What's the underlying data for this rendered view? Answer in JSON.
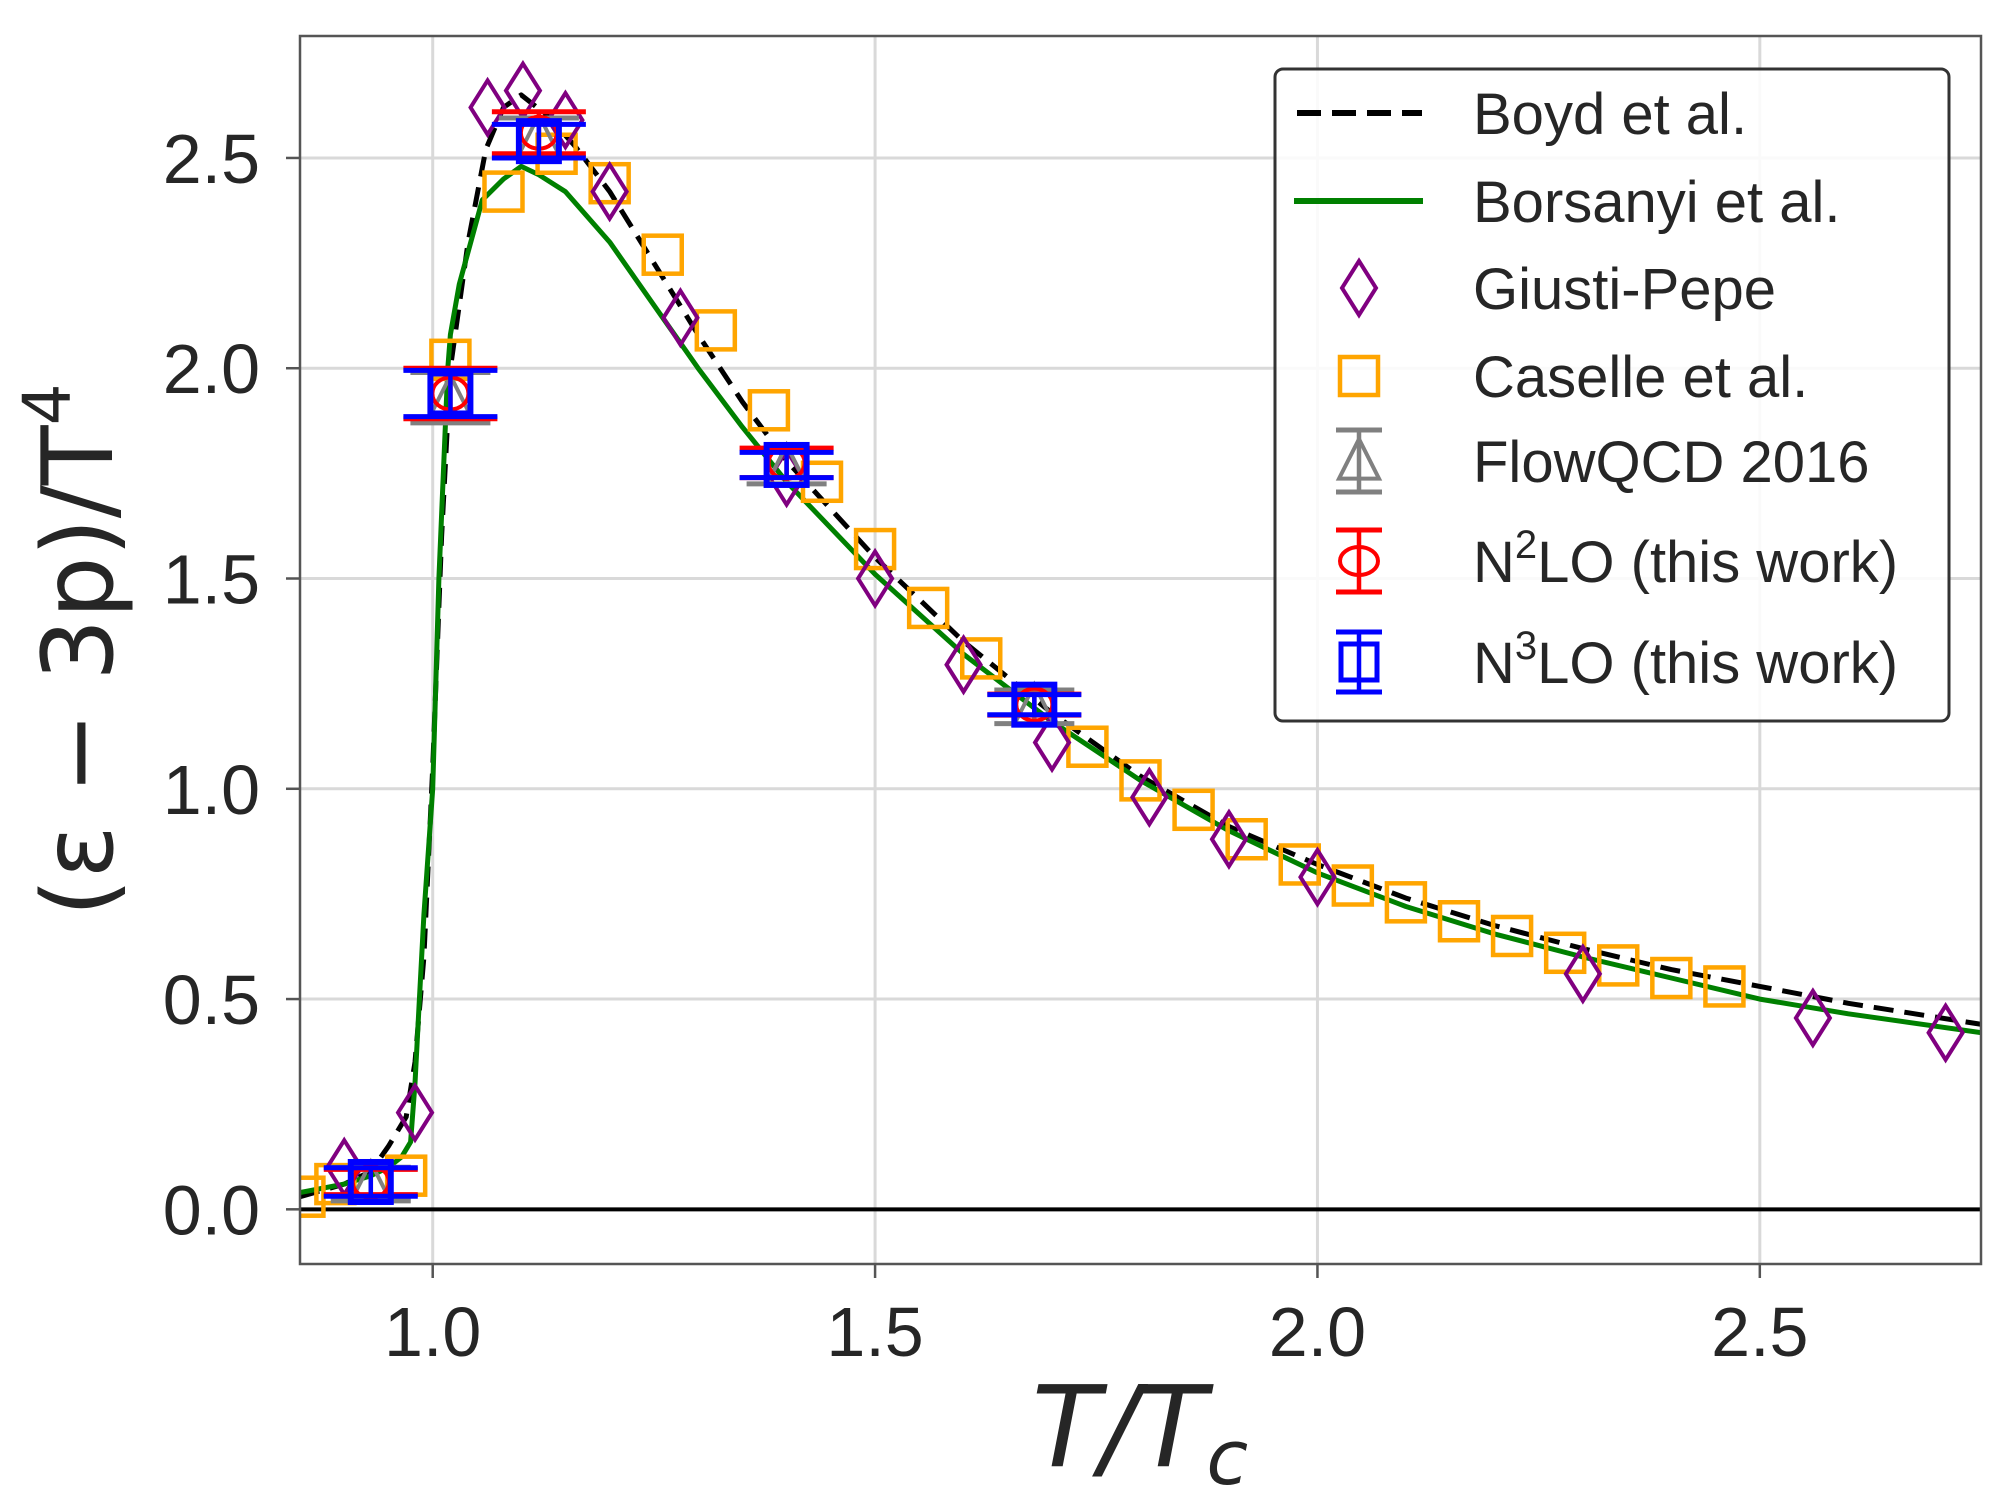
{
  "chart_data": {
    "type": "line",
    "title": "",
    "xlabel": "T/T_c",
    "xlabel_main": "T/T",
    "xlabel_sub": "c",
    "ylabel": "(ε − 3p)/T^4",
    "ylabel_main": "(ε − 3p)/T",
    "ylabel_sup": "4",
    "xlim": [
      0.85,
      2.75
    ],
    "ylim": [
      -0.13,
      2.79
    ],
    "xticks": [
      1.0,
      1.5,
      2.0,
      2.5
    ],
    "xtick_labels": [
      "1.0",
      "1.5",
      "2.0",
      "2.5"
    ],
    "yticks": [
      0.0,
      0.5,
      1.0,
      1.5,
      2.0,
      2.5
    ],
    "ytick_labels": [
      "0.0",
      "0.5",
      "1.0",
      "1.5",
      "2.0",
      "2.5"
    ],
    "grid": true,
    "zero_line": true,
    "legend_position": "top-right",
    "series": [
      {
        "name": "Boyd et al.",
        "style": "dashed-line",
        "color": "#000000",
        "x": [
          0.85,
          0.9,
          0.93,
          0.95,
          0.97,
          0.98,
          0.99,
          1.0,
          1.01,
          1.02,
          1.04,
          1.06,
          1.08,
          1.1,
          1.13,
          1.16,
          1.2,
          1.25,
          1.3,
          1.35,
          1.4,
          1.5,
          1.6,
          1.7,
          1.8,
          1.9,
          2.0,
          2.1,
          2.2,
          2.3,
          2.4,
          2.5,
          2.6,
          2.75
        ],
        "y": [
          0.03,
          0.06,
          0.09,
          0.15,
          0.22,
          0.35,
          0.6,
          1.05,
          1.6,
          2.0,
          2.3,
          2.52,
          2.62,
          2.65,
          2.6,
          2.53,
          2.42,
          2.25,
          2.08,
          1.92,
          1.78,
          1.55,
          1.35,
          1.18,
          1.03,
          0.91,
          0.82,
          0.74,
          0.675,
          0.62,
          0.57,
          0.53,
          0.49,
          0.44
        ]
      },
      {
        "name": "Borsanyi et al.",
        "style": "solid-line",
        "color": "#008000",
        "x": [
          0.85,
          0.9,
          0.93,
          0.95,
          0.965,
          0.975,
          0.98,
          0.985,
          0.99,
          1.0,
          1.007,
          1.017,
          1.02,
          1.03,
          1.056,
          1.08,
          1.1,
          1.12,
          1.15,
          1.2,
          1.25,
          1.3,
          1.35,
          1.4,
          1.5,
          1.6,
          1.7,
          1.8,
          1.9,
          2.0,
          2.1,
          2.2,
          2.3,
          2.4,
          2.5,
          2.6,
          2.75
        ],
        "y": [
          0.04,
          0.06,
          0.08,
          0.1,
          0.125,
          0.16,
          0.3,
          0.5,
          0.7,
          1.0,
          1.5,
          2.0,
          2.08,
          2.2,
          2.4,
          2.45,
          2.48,
          2.46,
          2.42,
          2.3,
          2.15,
          2.0,
          1.86,
          1.73,
          1.51,
          1.32,
          1.16,
          1.02,
          0.9,
          0.8,
          0.72,
          0.655,
          0.6,
          0.55,
          0.5,
          0.465,
          0.42
        ]
      },
      {
        "name": "Giusti-Pepe",
        "style": "diamond-markers",
        "color": "#800080",
        "x": [
          0.9,
          0.98,
          1.062,
          1.102,
          1.15,
          1.2,
          1.28,
          1.4,
          1.5,
          1.6,
          1.7,
          1.81,
          1.9,
          2.0,
          2.3,
          2.56,
          2.71
        ],
        "y": [
          0.1,
          0.23,
          2.62,
          2.66,
          2.59,
          2.42,
          2.12,
          1.74,
          1.5,
          1.295,
          1.11,
          0.98,
          0.88,
          0.79,
          0.56,
          0.455,
          0.42
        ]
      },
      {
        "name": "Caselle et al.",
        "style": "square-markers",
        "color": "#FFA500",
        "x": [
          0.855,
          0.89,
          0.97,
          1.02,
          1.08,
          1.14,
          1.2,
          1.26,
          1.32,
          1.38,
          1.44,
          1.5,
          1.56,
          1.62,
          1.74,
          1.8,
          1.86,
          1.92,
          1.98,
          2.04,
          2.1,
          2.16,
          2.22,
          2.28,
          2.34,
          2.4,
          2.46
        ],
        "y": [
          0.03,
          0.06,
          0.08,
          2.02,
          2.42,
          2.51,
          2.44,
          2.27,
          2.09,
          1.9,
          1.73,
          1.57,
          1.43,
          1.31,
          1.1,
          1.02,
          0.95,
          0.88,
          0.82,
          0.77,
          0.73,
          0.685,
          0.65,
          0.61,
          0.58,
          0.55,
          0.53
        ]
      },
      {
        "name": "FlowQCD 2016",
        "style": "triangle-errorbar",
        "color": "#808080",
        "x": [
          0.93,
          1.02,
          1.12,
          1.4,
          1.68
        ],
        "y": [
          0.06,
          1.93,
          2.55,
          1.765,
          1.195
        ],
        "yerr": [
          0.04,
          0.06,
          0.045,
          0.04,
          0.04
        ]
      },
      {
        "name": "N2LO (this work)",
        "legend_main": "N",
        "legend_sup": "2",
        "legend_rest": "LO (this work)",
        "style": "circle-errorbar",
        "color": "#FF0000",
        "x": [
          0.93,
          1.02,
          1.12,
          1.4,
          1.68
        ],
        "y": [
          0.065,
          1.94,
          2.56,
          1.775,
          1.2
        ],
        "yerr": [
          0.03,
          0.06,
          0.05,
          0.035,
          0.025
        ]
      },
      {
        "name": "N3LO (this work)",
        "legend_main": "N",
        "legend_sup": "3",
        "legend_rest": "LO (this work)",
        "style": "square-errorbar",
        "color": "#0000FF",
        "x": [
          0.93,
          1.02,
          1.12,
          1.4,
          1.68
        ],
        "y": [
          0.065,
          1.94,
          2.54,
          1.77,
          1.2
        ],
        "yerr": [
          0.034,
          0.055,
          0.04,
          0.03,
          0.024
        ]
      }
    ],
    "colors": {
      "grid": "#d9d9d9",
      "spine": "#555555",
      "text": "#262626",
      "zero_line": "#000000"
    }
  }
}
